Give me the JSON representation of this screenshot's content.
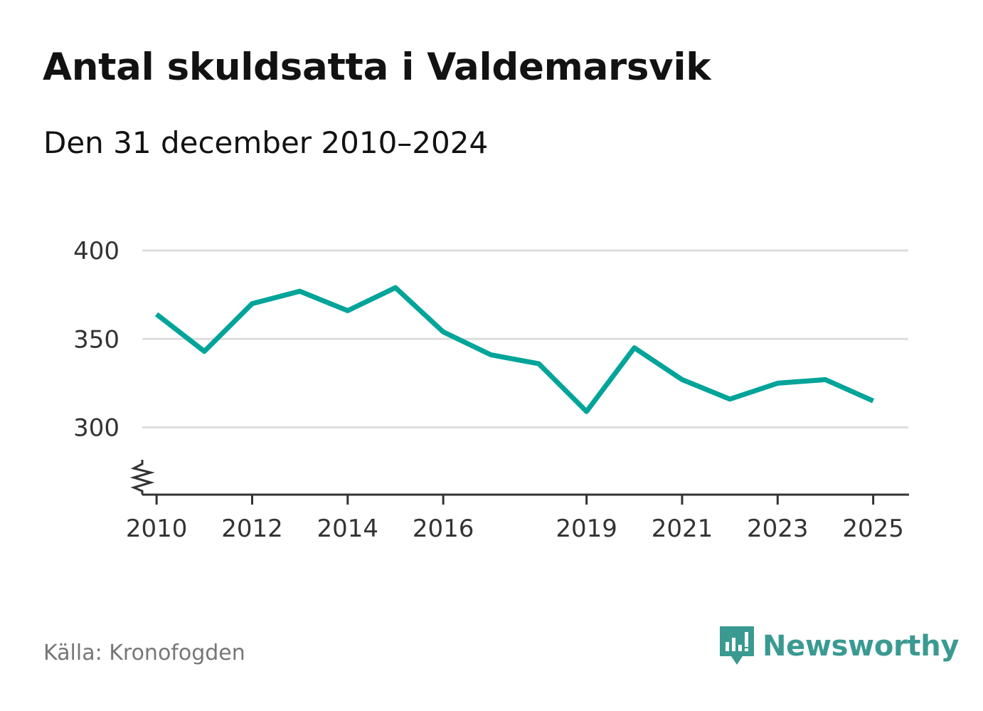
{
  "title": "Antal skuldsatta i Valdemarsvik",
  "subtitle": "Den 31 december 2010–2024",
  "source": "Källa: Kronofogden",
  "brand": {
    "name": "Newsworthy",
    "icon": "newsworthy-logo-icon",
    "color": "#3a9a92"
  },
  "colors": {
    "line": "#00a499",
    "grid": "#dddddd",
    "axis": "#333333"
  },
  "chart_data": {
    "type": "line",
    "title": "Antal skuldsatta i Valdemarsvik",
    "xlabel": "",
    "ylabel": "",
    "ylim": [
      262,
      400
    ],
    "xlim": [
      2009.7,
      2025.75
    ],
    "y_ticks": [
      300,
      350,
      400
    ],
    "y_tick_labels": [
      "300",
      "350",
      "400"
    ],
    "x_ticks": [
      2010,
      2012,
      2014,
      2016,
      2019,
      2021,
      2023,
      2025
    ],
    "x_tick_labels": [
      "2010",
      "2012",
      "2014",
      "2016",
      "2019",
      "2021",
      "2023",
      "2025"
    ],
    "axis_break": true,
    "grid": true,
    "series": [
      {
        "name": "Antal skuldsatta",
        "x": [
          2010,
          2011,
          2012,
          2013,
          2014,
          2015,
          2016,
          2017,
          2018,
          2019,
          2020,
          2021,
          2022,
          2023,
          2024,
          2025
        ],
        "values": [
          364,
          343,
          370,
          377,
          366,
          379,
          354,
          341,
          336,
          309,
          345,
          327,
          316,
          325,
          327,
          315
        ]
      }
    ]
  }
}
